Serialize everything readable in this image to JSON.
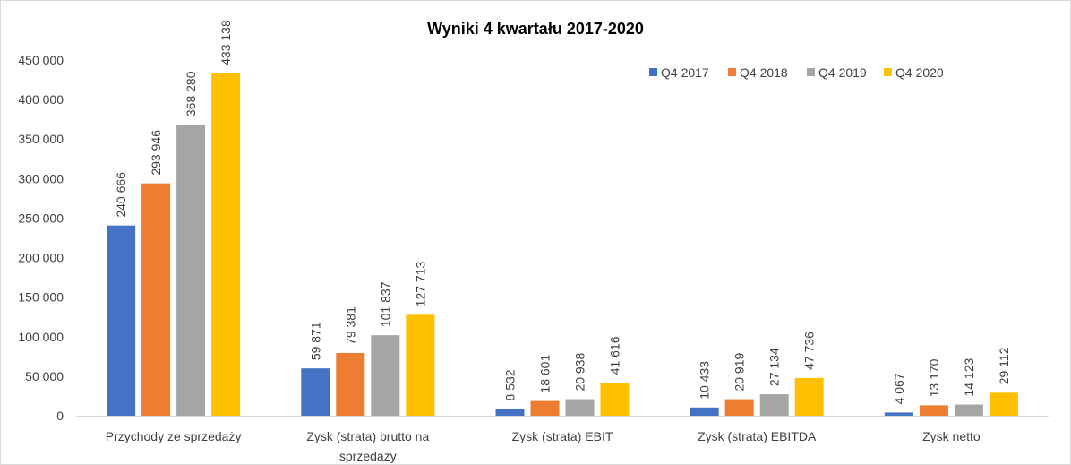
{
  "chart_data": {
    "type": "bar",
    "title": "Wyniki 4 kwartału 2017-2020",
    "categories": [
      [
        "Przychody ze sprzedaży"
      ],
      [
        "Zysk (strata) brutto na",
        "sprzedaży"
      ],
      [
        "Zysk (strata) EBIT"
      ],
      [
        "Zysk (strata) EBITDA"
      ],
      [
        "Zysk netto"
      ]
    ],
    "series": [
      {
        "name": "Q4 2017",
        "color": "#4472C4",
        "values": [
          240666,
          59871,
          8532,
          10433,
          4067
        ],
        "labels": [
          "240 666",
          "59 871",
          "8 532",
          "10 433",
          "4 067"
        ]
      },
      {
        "name": "Q4 2018",
        "color": "#ED7D31",
        "values": [
          293946,
          79381,
          18601,
          20919,
          13170
        ],
        "labels": [
          "293 946",
          "79 381",
          "18 601",
          "20 919",
          "13 170"
        ]
      },
      {
        "name": "Q4 2019",
        "color": "#A5A5A5",
        "values": [
          368280,
          101837,
          20938,
          27134,
          14123
        ],
        "labels": [
          "368 280",
          "101 837",
          "20 938",
          "27 134",
          "14 123"
        ]
      },
      {
        "name": "Q4 2020",
        "color": "#FFC000",
        "values": [
          433138,
          127713,
          41616,
          47736,
          29112
        ],
        "labels": [
          "433 138",
          "127 713",
          "41 616",
          "47 736",
          "29 112"
        ]
      }
    ],
    "y_ticks": [
      {
        "value": 0,
        "label": "0"
      },
      {
        "value": 50000,
        "label": "50 000"
      },
      {
        "value": 100000,
        "label": "100 000"
      },
      {
        "value": 150000,
        "label": "150 000"
      },
      {
        "value": 200000,
        "label": "200 000"
      },
      {
        "value": 250000,
        "label": "250 000"
      },
      {
        "value": 300000,
        "label": "300 000"
      },
      {
        "value": 350000,
        "label": "350 000"
      },
      {
        "value": 400000,
        "label": "400 000"
      },
      {
        "value": 450000,
        "label": "450 000"
      }
    ],
    "ylim": [
      0,
      450000
    ],
    "grid": false,
    "legend_position": "top-right"
  }
}
